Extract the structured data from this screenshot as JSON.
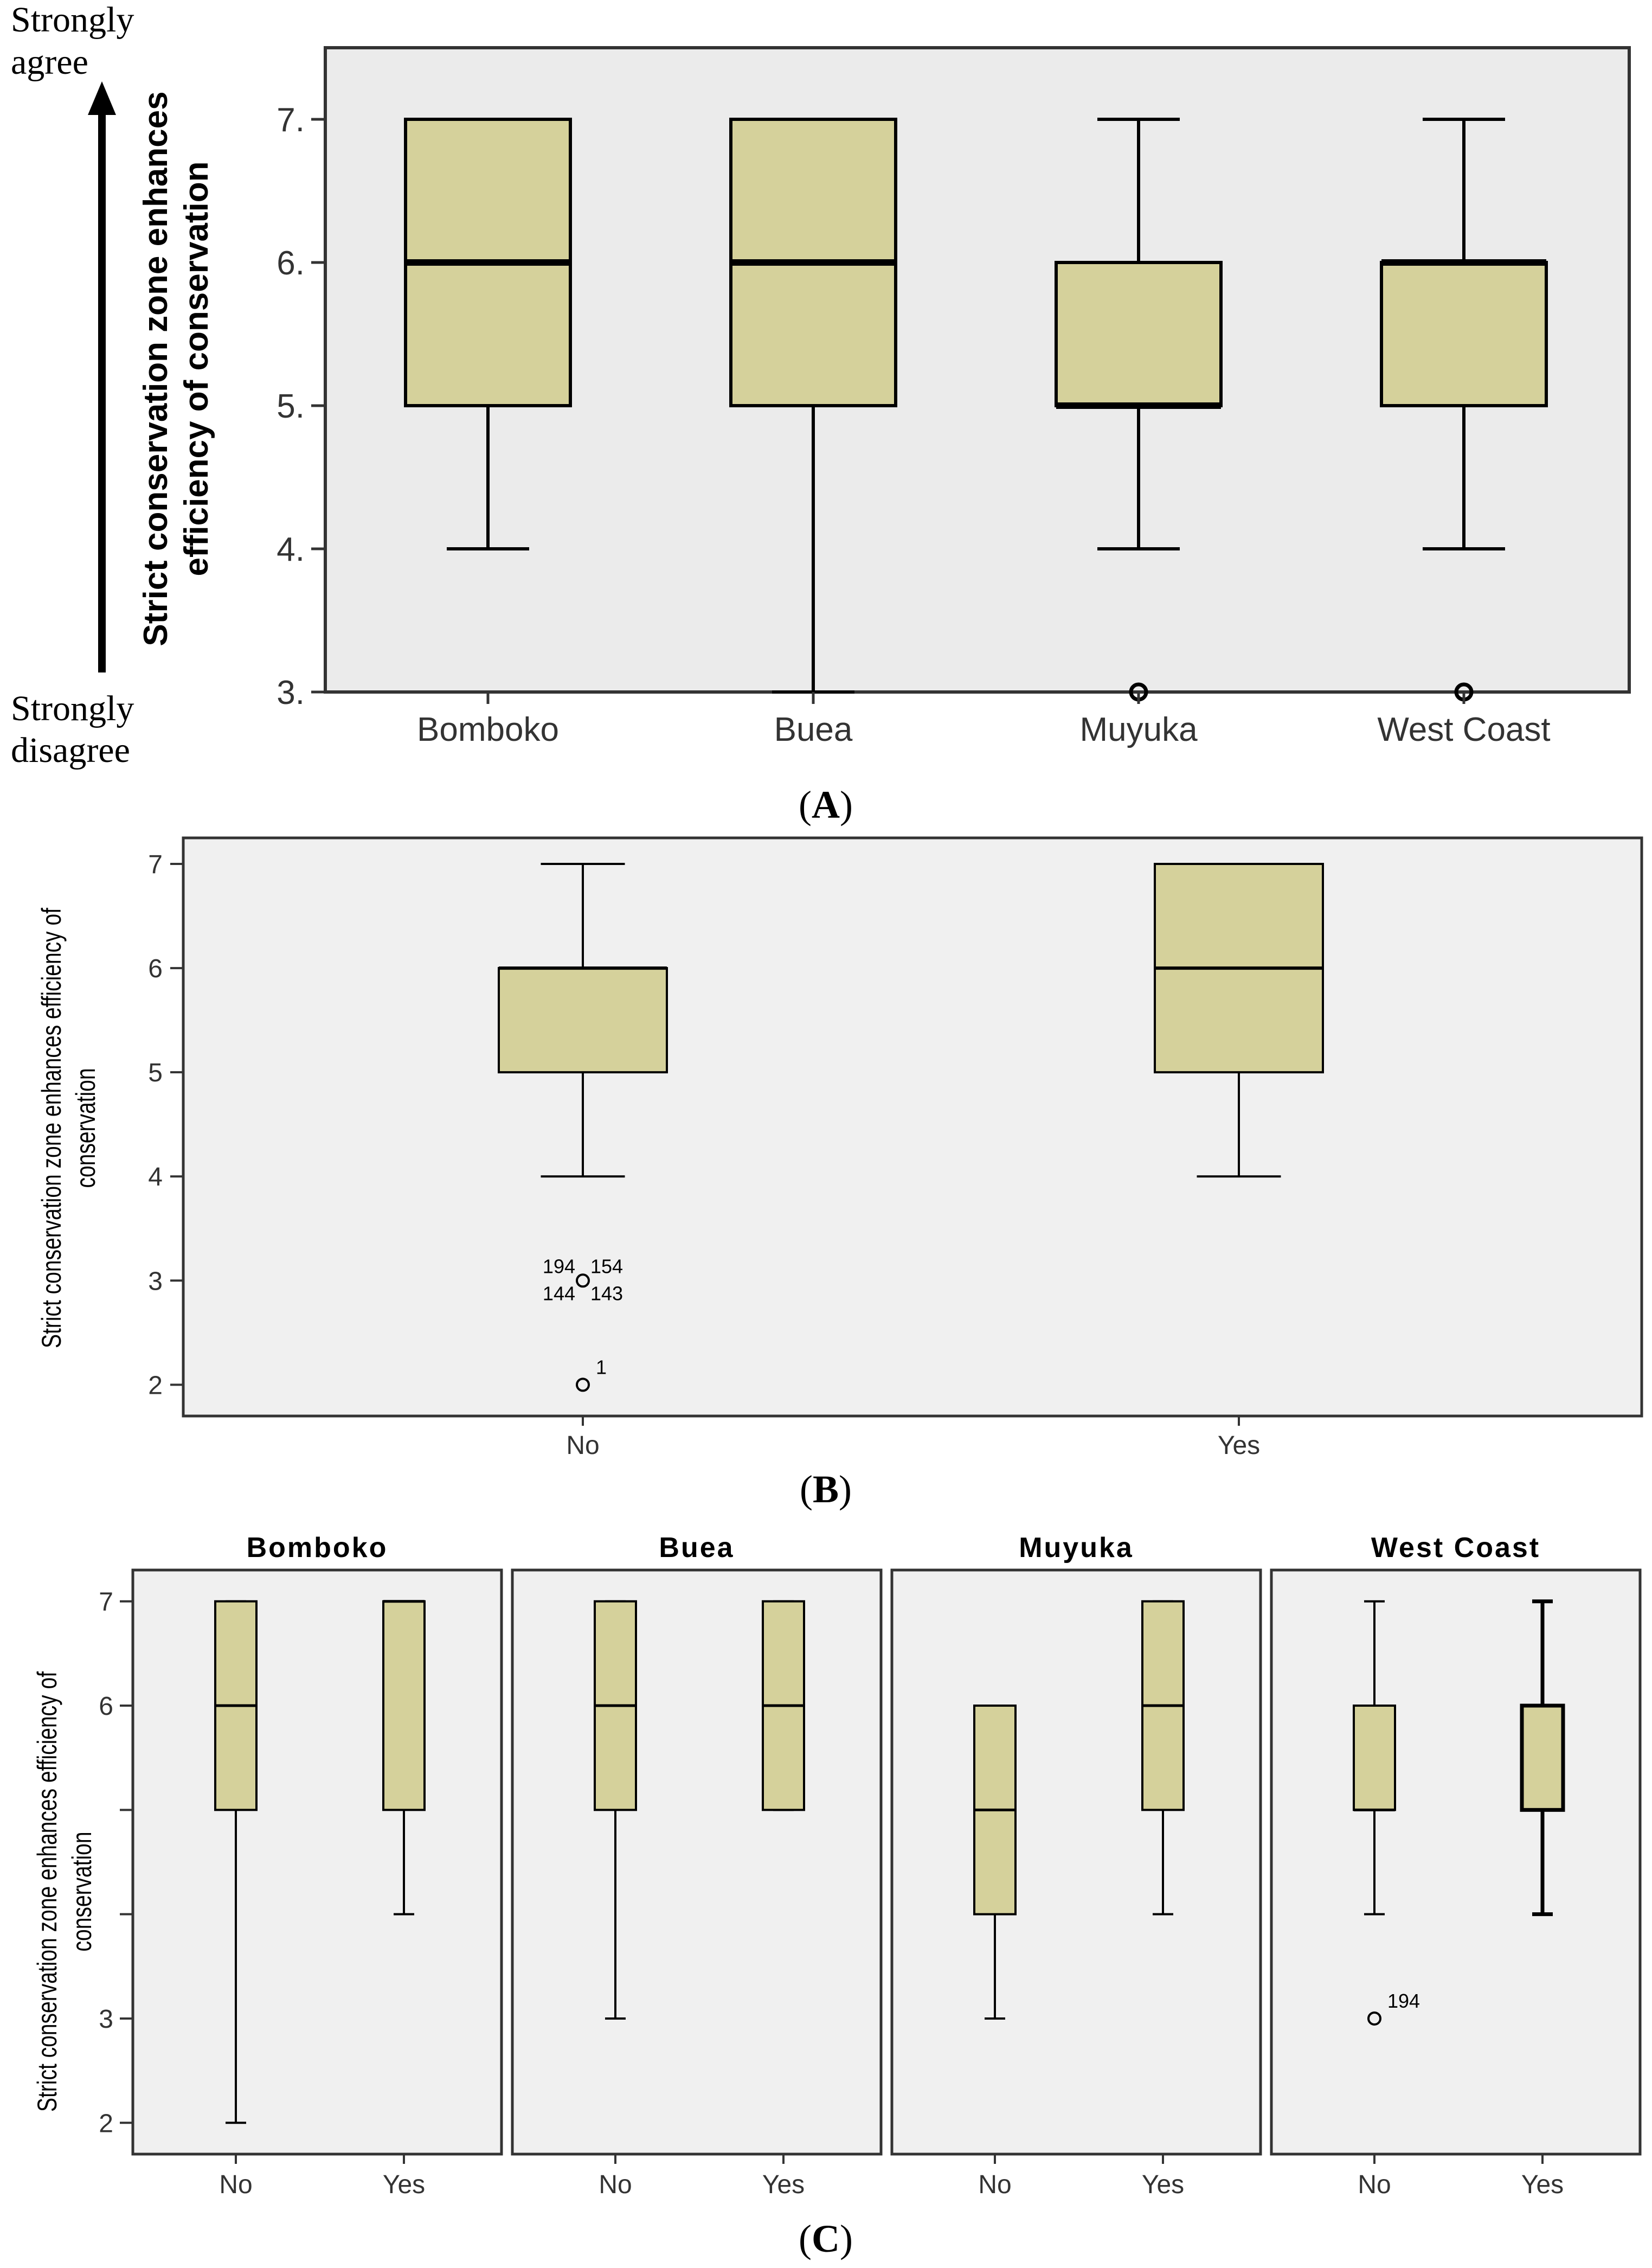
{
  "chart_data": [
    {
      "id": "A",
      "type": "boxplot",
      "caption": "A",
      "ylabel": [
        "Strict conservation zone enhances",
        "efficiency of conservation"
      ],
      "scale_top": [
        "Strongly",
        "agree"
      ],
      "scale_bottom": [
        "Strongly",
        "disagree"
      ],
      "ylim": [
        3,
        7.5
      ],
      "yticks": [
        3,
        4,
        5,
        6,
        7
      ],
      "ytick_labels": [
        "3.",
        "4.",
        "5.",
        "6.",
        "7."
      ],
      "grid": false,
      "groups": [
        {
          "label": "Bomboko",
          "min": 4,
          "q1": 5,
          "median": 6,
          "q3": 7,
          "max": 7,
          "outliers": []
        },
        {
          "label": "Buea",
          "min": 3,
          "q1": 5,
          "median": 6,
          "q3": 7,
          "max": 7,
          "outliers": []
        },
        {
          "label": "Muyuka",
          "min": 4,
          "q1": 5,
          "median": 5,
          "q3": 6,
          "max": 7,
          "outliers": [
            {
              "y": 3,
              "label": ""
            }
          ]
        },
        {
          "label": "West Coast",
          "min": 4,
          "q1": 5,
          "median": 6,
          "q3": 6,
          "max": 7,
          "outliers": [
            {
              "y": 3,
              "label": ""
            }
          ]
        }
      ]
    },
    {
      "id": "B",
      "type": "boxplot",
      "caption": "B",
      "ylabel": [
        "Strict conservation zone enhances efficiency of",
        "conservation"
      ],
      "ylim": [
        1.7,
        7.25
      ],
      "yticks": [
        2,
        3,
        4,
        5,
        6,
        7
      ],
      "ytick_labels": [
        "2",
        "3",
        "4",
        "5",
        "6",
        "7"
      ],
      "grid": false,
      "groups": [
        {
          "label": "No",
          "min": 4,
          "q1": 5,
          "median": 6,
          "q3": 6,
          "max": 7,
          "outliers": [
            {
              "y": 3,
              "label": ""
            },
            {
              "y": 2,
              "label": "1"
            }
          ],
          "outlier_labels": [
            "194",
            "154",
            "144",
            "143"
          ]
        },
        {
          "label": "Yes",
          "min": 4,
          "q1": 5,
          "median": 6,
          "q3": 7,
          "max": 7,
          "outliers": []
        }
      ]
    },
    {
      "id": "C",
      "type": "boxplot",
      "caption": "C",
      "ylabel": [
        "Strict conservation zone enhances efficiency of",
        "conservation"
      ],
      "ylim": [
        1.7,
        7.3
      ],
      "yticks": [
        2,
        3,
        4,
        5,
        6,
        7
      ],
      "ytick_labels": [
        "2",
        "3",
        "",
        "",
        "6",
        "7"
      ],
      "grid": false,
      "panels": [
        {
          "title": "Bomboko",
          "groups": [
            {
              "label": "No",
              "min": 2,
              "q1": 5,
              "median": 6,
              "q3": 7,
              "max": 7,
              "outliers": []
            },
            {
              "label": "Yes",
              "min": 4,
              "q1": 5,
              "median": 7,
              "q3": 7,
              "max": 7,
              "outliers": []
            }
          ]
        },
        {
          "title": "Buea",
          "groups": [
            {
              "label": "No",
              "min": 3,
              "q1": 5,
              "median": 6,
              "q3": 7,
              "max": 7,
              "outliers": []
            },
            {
              "label": "Yes",
              "min": 5,
              "q1": 5,
              "median": 6,
              "q3": 7,
              "max": 7,
              "outliers": []
            }
          ]
        },
        {
          "title": "Muyuka",
          "groups": [
            {
              "label": "No",
              "min": 3,
              "q1": 4,
              "median": 5,
              "q3": 6,
              "max": 6,
              "outliers": []
            },
            {
              "label": "Yes",
              "min": 4,
              "q1": 5,
              "median": 6,
              "q3": 7,
              "max": 7,
              "outliers": []
            }
          ]
        },
        {
          "title": "West Coast",
          "groups": [
            {
              "label": "No",
              "min": 4,
              "q1": 5,
              "median": 5,
              "q3": 6,
              "max": 7,
              "outliers": [
                {
                  "y": 3,
                  "label": "194"
                }
              ]
            },
            {
              "label": "Yes",
              "min": 4,
              "q1": 5,
              "median": 6,
              "q3": 6,
              "max": 7,
              "outliers": []
            }
          ]
        }
      ]
    }
  ],
  "colors": {
    "box_fill": "#d5d19b",
    "plot_bg_a": "#ebebeb",
    "plot_bg_bc": "#f0f0f0",
    "ink": "#000000",
    "axis": "#333333"
  }
}
